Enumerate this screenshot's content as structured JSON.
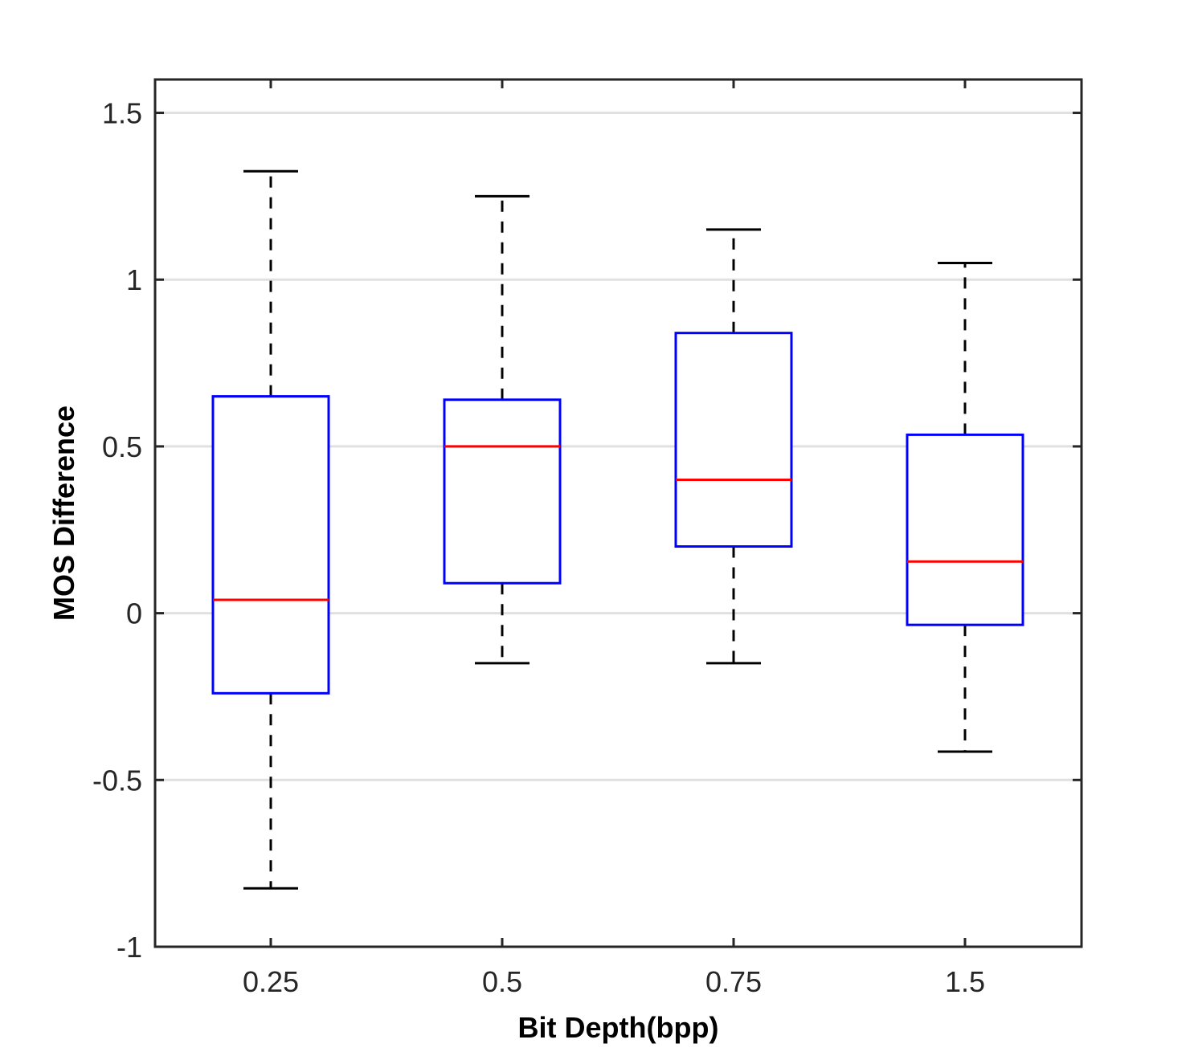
{
  "chart_data": {
    "type": "box",
    "title": "",
    "xlabel": "Bit Depth(bpp)",
    "ylabel": "MOS Difference",
    "categories": [
      "0.25",
      "0.5",
      "0.75",
      "1.5"
    ],
    "ylim": [
      -1,
      1.6
    ],
    "yticks": [
      -1,
      -0.5,
      0,
      0.5,
      1,
      1.5
    ],
    "ytick_labels": [
      "-1",
      "-0.5",
      "0",
      "0.5",
      "1",
      "1.5"
    ],
    "grid": "horizontal",
    "boxes": [
      {
        "category": "0.25",
        "whisker_low": -0.825,
        "q1": -0.24,
        "median": 0.04,
        "q3": 0.65,
        "whisker_high": 1.325
      },
      {
        "category": "0.5",
        "whisker_low": -0.15,
        "q1": 0.09,
        "median": 0.5,
        "q3": 0.64,
        "whisker_high": 1.25
      },
      {
        "category": "0.75",
        "whisker_low": -0.15,
        "q1": 0.2,
        "median": 0.4,
        "q3": 0.84,
        "whisker_high": 1.15
      },
      {
        "category": "1.5",
        "whisker_low": -0.415,
        "q1": -0.035,
        "median": 0.155,
        "q3": 0.535,
        "whisker_high": 1.05
      }
    ],
    "colors": {
      "box": "#0000ff",
      "median": "#ff0000",
      "whisker": "#000000",
      "grid": "#e0e0e0",
      "axes": "#262626"
    }
  }
}
